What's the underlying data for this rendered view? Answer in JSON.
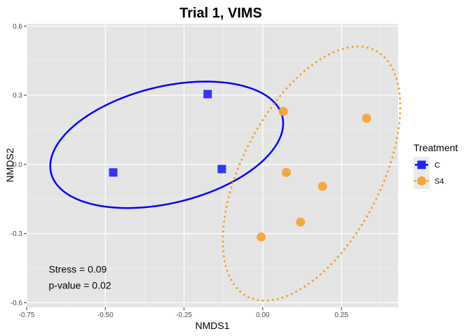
{
  "chart_data": {
    "type": "scatter",
    "title": "Trial 1, VIMS",
    "xlabel": "NMDS1",
    "ylabel": "NMDS2",
    "xlim": [
      -0.75,
      0.43
    ],
    "ylim": [
      -0.62,
      0.61
    ],
    "xticks": [
      -0.75,
      -0.5,
      -0.25,
      0.0,
      0.25
    ],
    "xtick_labels": [
      "-0.75",
      "-0.50",
      "-0.25",
      "0.00",
      "0.25"
    ],
    "yticks": [
      -0.6,
      -0.3,
      0.0,
      0.3,
      0.6
    ],
    "ytick_labels": [
      "-0.6",
      "-0.3",
      "0.0",
      "0.3",
      "0.6"
    ],
    "grid": true,
    "legend": {
      "title": "Treatment",
      "position": "right"
    },
    "series": [
      {
        "name": "C",
        "marker": "square",
        "color": "#2020ff",
        "ellipse_color": "#0000ff",
        "ellipse_style": "solid",
        "points": [
          {
            "x": -0.475,
            "y": -0.035
          },
          {
            "x": -0.175,
            "y": 0.305
          },
          {
            "x": -0.13,
            "y": -0.02
          }
        ],
        "ellipse": {
          "cx": -0.305,
          "cy": 0.085,
          "rx": 0.39,
          "ry": 0.245,
          "angle_deg": 24
        }
      },
      {
        "name": "S4",
        "marker": "circle",
        "color": "#f9a335",
        "ellipse_color": "#f79f2d",
        "ellipse_style": "dotted",
        "points": [
          {
            "x": 0.065,
            "y": 0.23
          },
          {
            "x": 0.33,
            "y": 0.2
          },
          {
            "x": 0.075,
            "y": -0.035
          },
          {
            "x": 0.19,
            "y": -0.095
          },
          {
            "x": 0.12,
            "y": -0.25
          },
          {
            "x": -0.005,
            "y": -0.315
          }
        ],
        "ellipse": {
          "cx": 0.155,
          "cy": -0.04,
          "rx": 0.575,
          "ry": 0.23,
          "angle_deg": 72
        }
      }
    ],
    "annotations": [
      {
        "text": "Stress =  0.09",
        "x": -0.68,
        "y": -0.47
      },
      {
        "text": "p-value =  0.02",
        "x": -0.68,
        "y": -0.54
      }
    ]
  }
}
